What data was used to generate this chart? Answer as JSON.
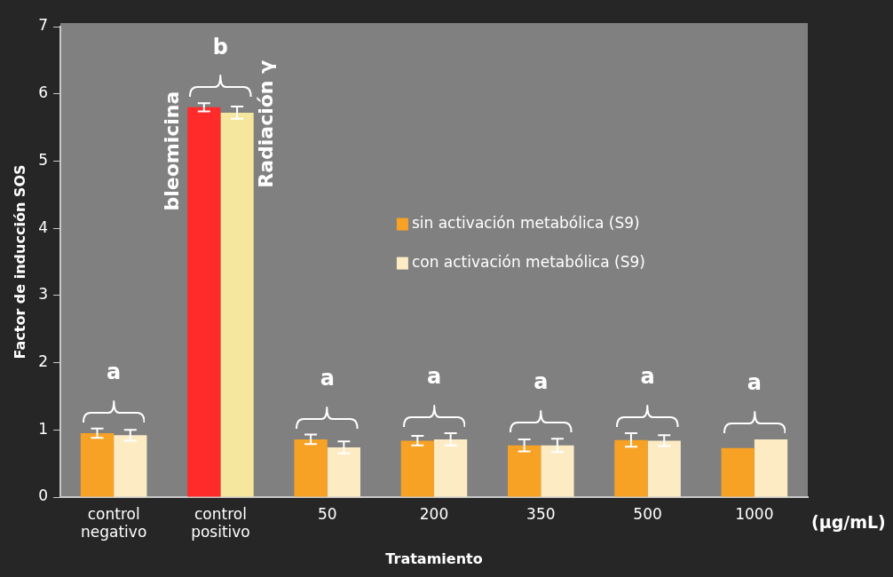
{
  "chart_data": {
    "type": "bar",
    "xlabel": "Tratamiento",
    "ylabel": "Factor de inducción SOS",
    "categories": [
      "control negativo",
      "control positivo",
      "50",
      "200",
      "350",
      "500",
      "1000"
    ],
    "series": [
      {
        "name": "sin activación metabólica (S9)",
        "color": "#f7a225",
        "colors": [
          "#f7a225",
          "#ff2a2a",
          "#f7a225",
          "#f7a225",
          "#f7a225",
          "#f7a225",
          "#f7a225"
        ],
        "values": [
          0.95,
          5.8,
          0.86,
          0.84,
          0.77,
          0.85,
          0.73
        ],
        "errors": [
          0.07,
          0.06,
          0.07,
          0.07,
          0.09,
          0.1,
          null
        ]
      },
      {
        "name": "con activación metabólica (S9)",
        "color": "#fdebc4",
        "colors": [
          "#fdebc4",
          "#f6e79e",
          "#fdebc4",
          "#fdebc4",
          "#fdebc4",
          "#fdebc4",
          "#fdebc4"
        ],
        "values": [
          0.92,
          5.72,
          0.74,
          0.86,
          0.77,
          0.84,
          0.86
        ],
        "errors": [
          0.08,
          0.09,
          0.09,
          0.09,
          0.1,
          0.08,
          null
        ]
      }
    ],
    "ylim": [
      0,
      7
    ],
    "yticks": [
      0,
      1,
      2,
      3,
      4,
      5,
      6,
      7
    ],
    "grid": false,
    "legend": "center",
    "annotations": [
      "a",
      "b",
      "a",
      "a",
      "a",
      "a",
      "a",
      {
        "text": "bleomicina",
        "x": "control positivo",
        "y": 5.15
      },
      {
        "text": "Radiación γ",
        "x": "control positivo",
        "y": 5.55
      },
      "(µg/mL)"
    ]
  }
}
